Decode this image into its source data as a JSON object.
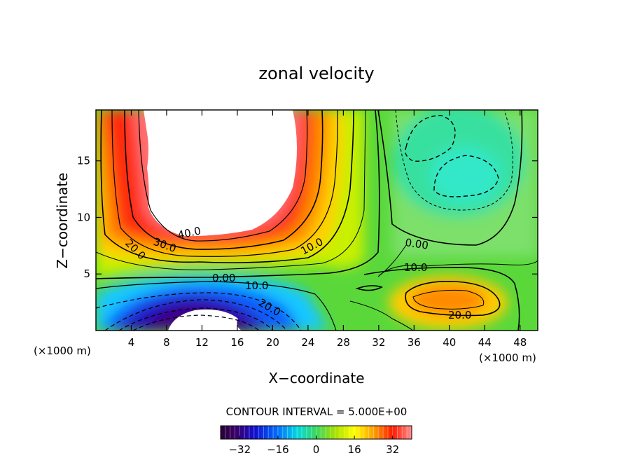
{
  "chart_data": {
    "type": "heatmap",
    "title": "zonal velocity",
    "xlabel": "X−coordinate",
    "ylabel": "Z−coordinate",
    "x_unit_left": "(×1000 m)",
    "x_unit_right": "(×1000 m)",
    "xlim": [
      0,
      50
    ],
    "ylim": [
      0,
      19.5
    ],
    "x_ticks": [
      4,
      8,
      12,
      16,
      20,
      24,
      28,
      32,
      36,
      40,
      44,
      48
    ],
    "y_ticks": [
      5,
      10,
      15
    ],
    "contour_interval_text": "CONTOUR INTERVAL = 5.000E+00",
    "contour_labels": [
      {
        "text": "40.0",
        "x": 11.2,
        "z": 8.4
      },
      {
        "text": "30.0",
        "x": 8.0,
        "z": 7.8
      },
      {
        "text": "20.0",
        "x": 4.7,
        "z": 7.4
      },
      {
        "text": "10.0",
        "x": 25.6,
        "z": 7.3
      },
      {
        "text": "0.00",
        "x": 37.2,
        "z": 8.1
      },
      {
        "text": "10.0",
        "x": 36.9,
        "z": 5.6
      },
      {
        "text": "0.00",
        "x": 14.8,
        "z": 4.8
      },
      {
        "text": "10.0",
        "x": 18.0,
        "z": 4.2
      },
      {
        "text": "20.0",
        "x": 19.3,
        "z": 2.3
      },
      {
        "text": "20.0",
        "x": 41.5,
        "z": 1.6
      }
    ],
    "features": [
      {
        "kind": "jet_max",
        "center": [
          12.5,
          14.8
        ],
        "value": 45
      },
      {
        "kind": "jet_min",
        "center": [
          12.8,
          0.4
        ],
        "value": -38
      },
      {
        "kind": "weak_min",
        "center": [
          38.3,
          16.8
        ],
        "value": -6
      },
      {
        "kind": "weak_min",
        "center": [
          42.2,
          14.2
        ],
        "value": -7
      },
      {
        "kind": "local_max",
        "center": [
          40.5,
          3.1
        ],
        "value": 25
      }
    ],
    "colorbar": {
      "range": [
        -40,
        40
      ],
      "ticks": [
        -32,
        -16,
        0,
        16,
        32
      ],
      "tick_labels": [
        "−32",
        "−16",
        "0",
        "16",
        "32"
      ]
    }
  }
}
